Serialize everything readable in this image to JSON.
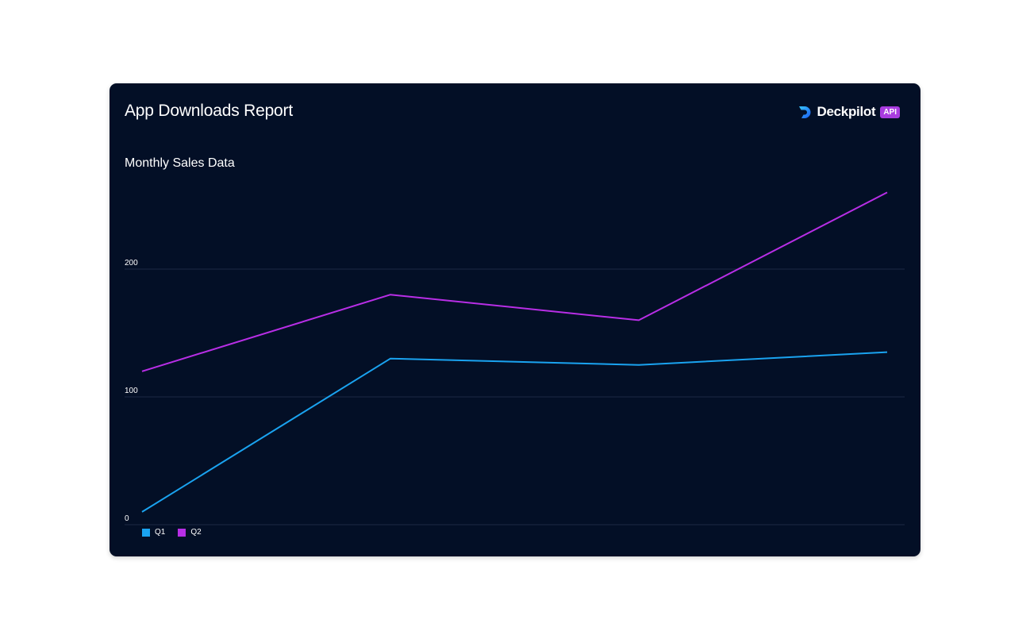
{
  "card": {
    "title": "App Downloads Report"
  },
  "brand": {
    "name": "Deckpilot",
    "badge": "API",
    "logo_icon": "deckpilot-logo-icon"
  },
  "colors": {
    "background": "#030f26",
    "grid": "#1c2a44",
    "q1": "#1aa3f0",
    "q2": "#b82ee6",
    "badge": "#a93ce0"
  },
  "chart_data": {
    "type": "line",
    "title": "Monthly Sales Data",
    "xlabel": "",
    "ylabel": "",
    "x": [
      1,
      2,
      3,
      4
    ],
    "ylim": [
      0,
      260
    ],
    "yticks": [
      0,
      100,
      200
    ],
    "grid": true,
    "legend_position": "bottom-left",
    "series": [
      {
        "name": "Q1",
        "color": "#1aa3f0",
        "values": [
          10,
          130,
          125,
          135
        ]
      },
      {
        "name": "Q2",
        "color": "#b82ee6",
        "values": [
          120,
          180,
          160,
          260
        ]
      }
    ]
  }
}
